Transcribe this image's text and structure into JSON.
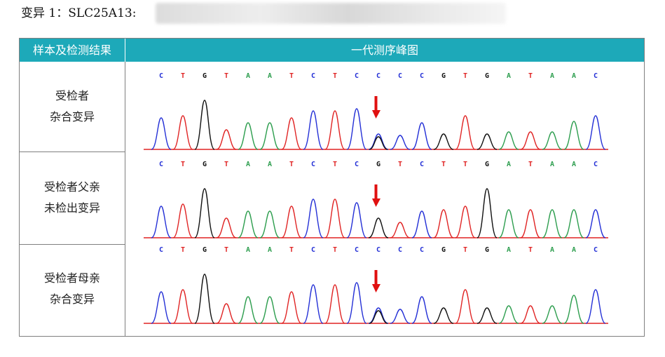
{
  "title": "变异 1：SLC25A13:",
  "table": {
    "header_left": "样本及检测结果",
    "header_right": "一代测序峰图"
  },
  "rows": [
    {
      "line1": "受检者",
      "line2": "杂合变异",
      "bases": [
        "C",
        "T",
        "G",
        "T",
        "A",
        "A",
        "T",
        "C",
        "T",
        "C",
        "C",
        "C",
        "C",
        "G",
        "T",
        "G",
        "A",
        "T",
        "A",
        "A",
        "C"
      ]
    },
    {
      "line1": "受检者父亲",
      "line2": "未检出变异",
      "bases": [
        "C",
        "T",
        "G",
        "T",
        "A",
        "A",
        "T",
        "C",
        "T",
        "C",
        "G",
        "T",
        "C",
        "T",
        "T",
        "G",
        "A",
        "T",
        "A",
        "A",
        "C"
      ]
    },
    {
      "line1": "受检者母亲",
      "line2": "杂合变异",
      "bases": [
        "C",
        "T",
        "G",
        "T",
        "A",
        "A",
        "T",
        "C",
        "T",
        "C",
        "C",
        "C",
        "C",
        "G",
        "T",
        "G",
        "A",
        "T",
        "A",
        "A",
        "C"
      ]
    }
  ],
  "base_colors": {
    "A": "#2e9e4f",
    "C": "#2430d6",
    "G": "#111111",
    "T": "#e02424"
  },
  "arrow_color": "#e01010",
  "mutation_index": 10
}
